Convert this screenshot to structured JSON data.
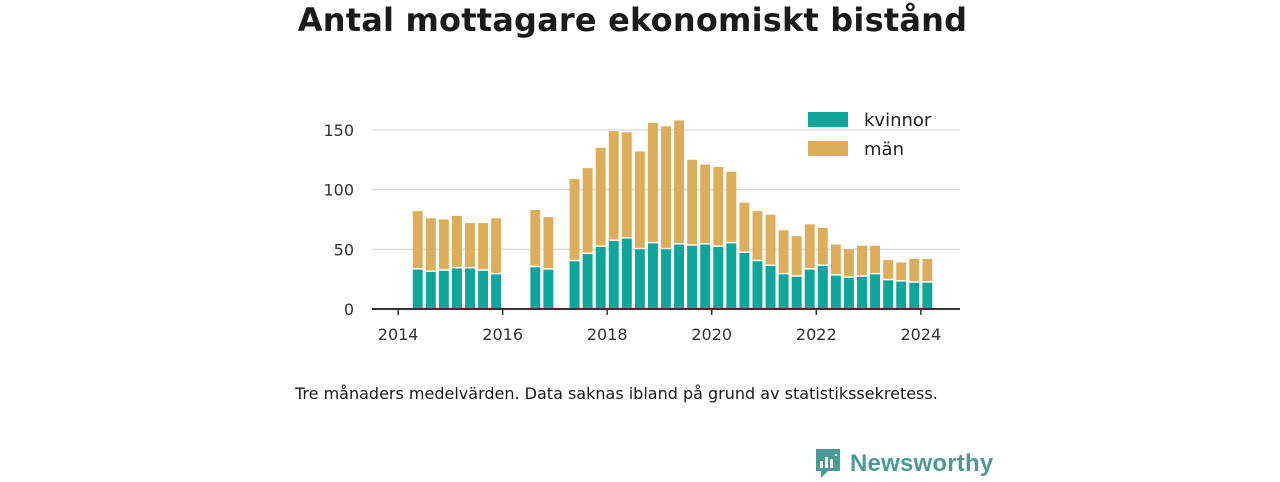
{
  "title": "Antal mottagare ekonomiskt bistånd",
  "caption": "Tre månaders medelvärden. Data saknas ibland på grund av statistikssekretess.",
  "logo": {
    "text": "Newsworthy",
    "icon": "newsworthy-logo-icon",
    "color": "#4a9a96"
  },
  "chart_data": {
    "type": "bar",
    "stacked": true,
    "xlabel": "",
    "ylabel": "",
    "ylim": [
      0,
      160
    ],
    "xlim": [
      2013.5,
      2024.75
    ],
    "x_ticks": [
      2014,
      2016,
      2018,
      2020,
      2022,
      2024
    ],
    "y_ticks": [
      0,
      50,
      100,
      150
    ],
    "grid": "horizontal",
    "legend_position": "top-right",
    "bar_width_years": 0.19,
    "x": [
      2014.375,
      2014.625,
      2014.875,
      2015.125,
      2015.375,
      2015.625,
      2015.875,
      2016.625,
      2016.875,
      2017.375,
      2017.625,
      2017.875,
      2018.125,
      2018.375,
      2018.625,
      2018.875,
      2019.125,
      2019.375,
      2019.625,
      2019.875,
      2020.125,
      2020.375,
      2020.625,
      2020.875,
      2021.125,
      2021.375,
      2021.625,
      2021.875,
      2022.125,
      2022.375,
      2022.625,
      2022.875,
      2023.125,
      2023.375,
      2023.625,
      2023.875,
      2024.125
    ],
    "series": [
      {
        "name": "kvinnor",
        "color": "#0ea59a",
        "values": [
          33,
          31,
          32,
          34,
          34,
          32,
          29,
          35,
          33,
          40,
          46,
          52,
          57,
          59,
          50,
          55,
          50,
          54,
          53,
          54,
          52,
          55,
          47,
          40,
          36,
          29,
          27,
          33,
          36,
          28,
          26,
          27,
          29,
          24,
          23,
          22,
          22
        ]
      },
      {
        "name": "män",
        "color": "#dcae5c",
        "values": [
          49,
          45,
          43,
          44,
          38,
          40,
          47,
          48,
          44,
          69,
          72,
          83,
          92,
          89,
          82,
          101,
          103,
          104,
          72,
          67,
          67,
          60,
          42,
          42,
          43,
          37,
          34,
          38,
          32,
          26,
          24,
          26,
          24,
          17,
          16,
          20,
          20
        ]
      }
    ]
  }
}
